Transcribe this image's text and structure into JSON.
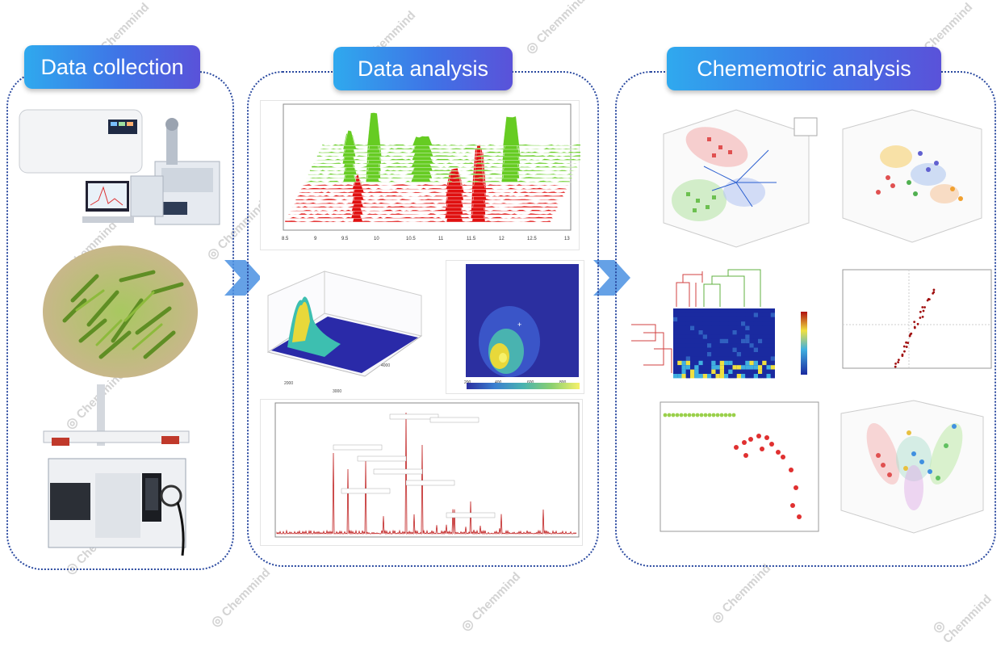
{
  "stages": [
    {
      "title": "Data collection"
    },
    {
      "title": "Data analysis"
    },
    {
      "title": "Chememotric analysis"
    }
  ],
  "watermark": "Chemmind",
  "colors": {
    "badge_start": "#2fa9ee",
    "badge_end": "#5a52d9",
    "border": "#2b4aa0",
    "arrow": "#4a90e2"
  },
  "icons": [
    "gc-ms-instrument",
    "tea-leaves-photo",
    "autosampler-instrument",
    "chevron-right-icon"
  ]
}
